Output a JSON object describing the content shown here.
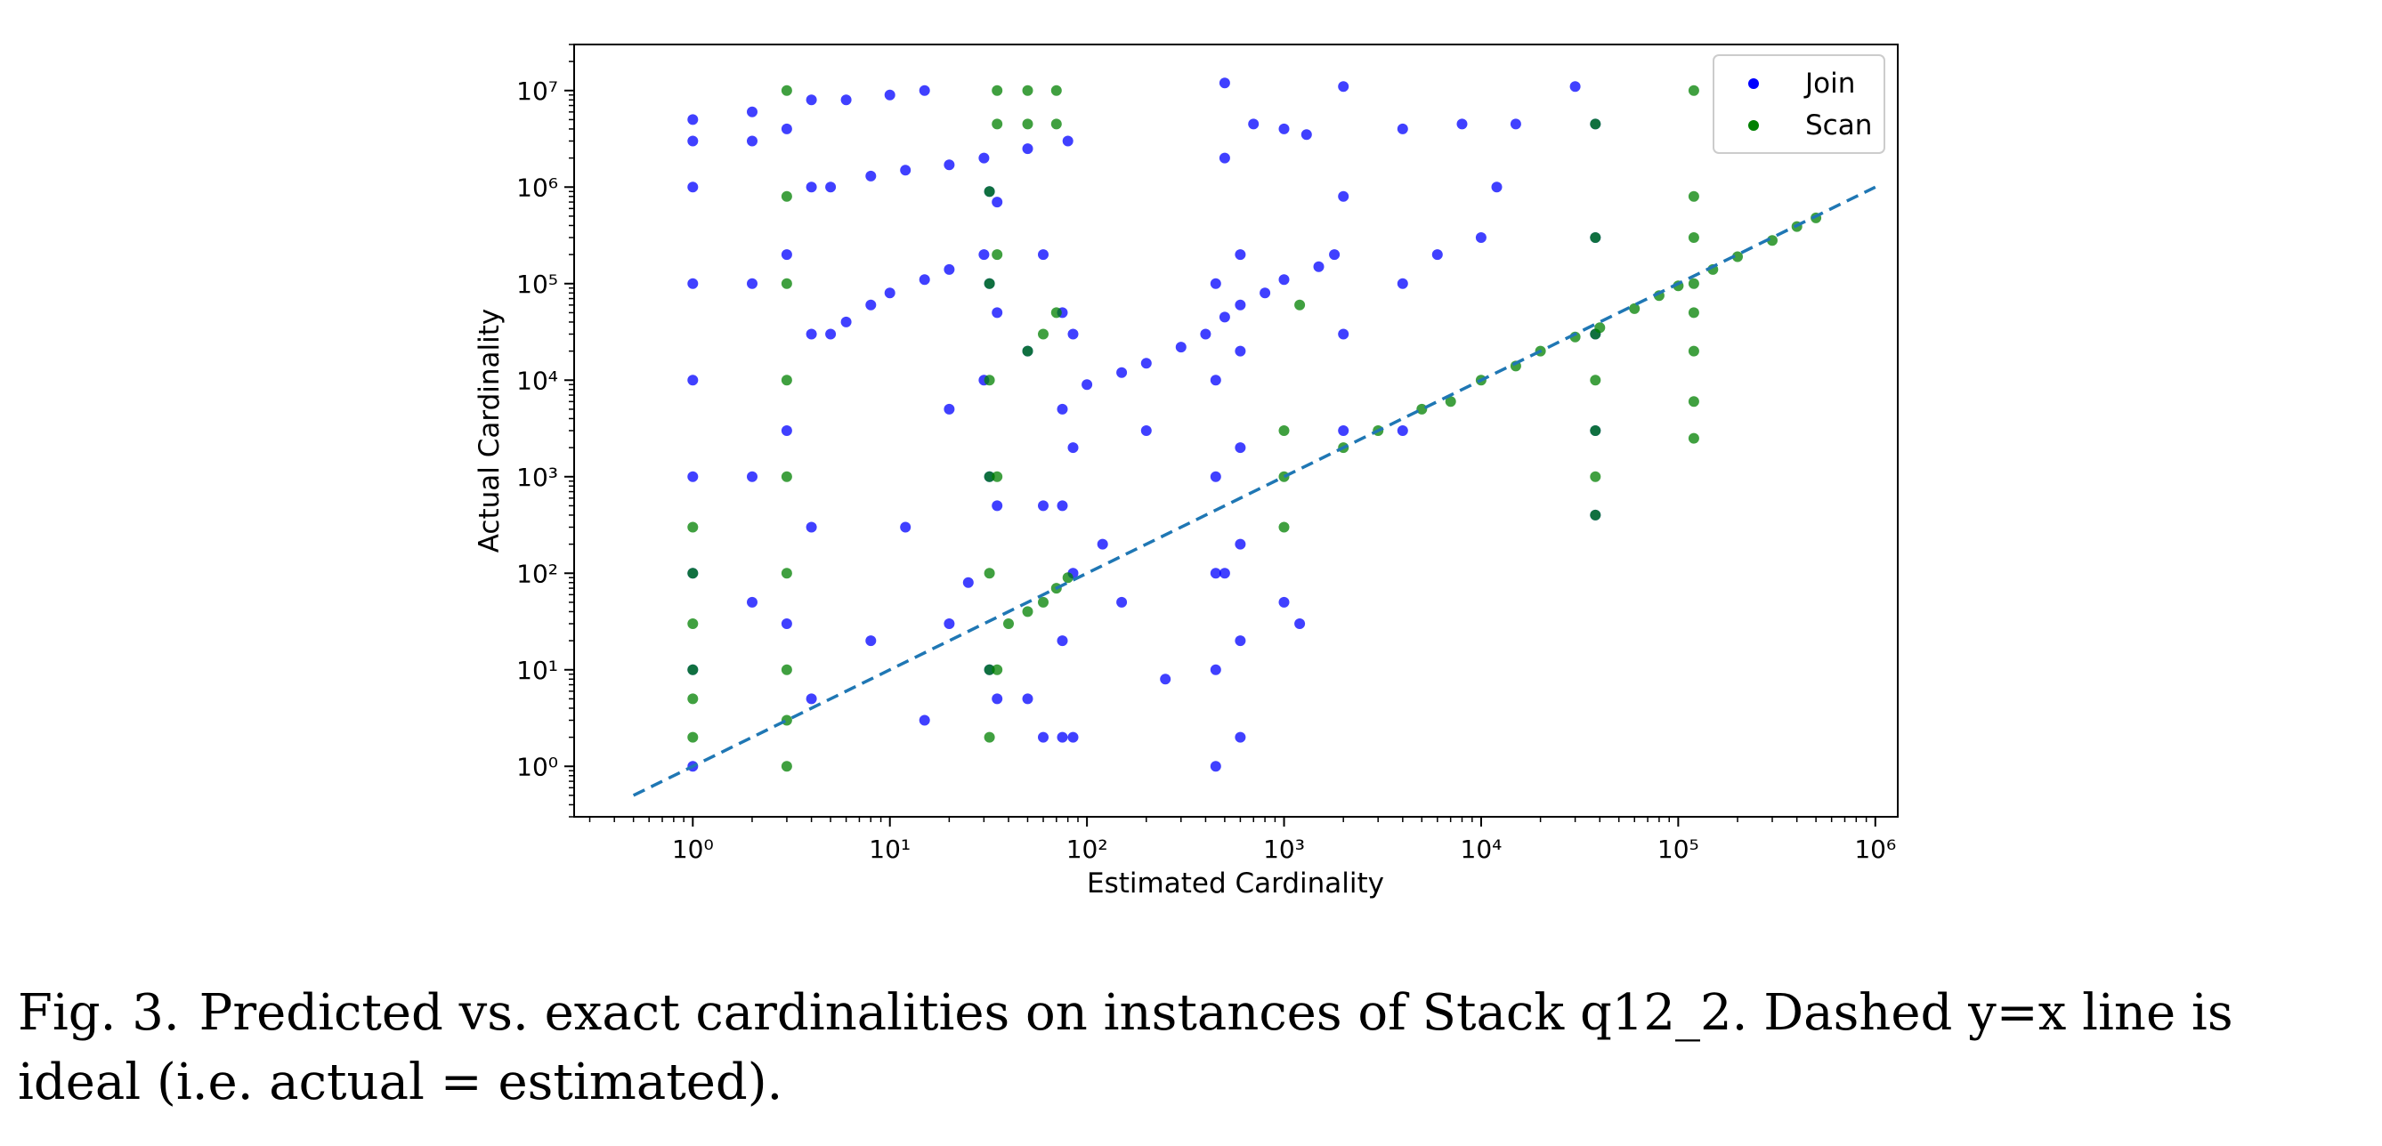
{
  "chart_data": {
    "type": "scatter",
    "title": "",
    "xlabel": "Estimated Cardinality",
    "ylabel": "Actual Cardinality",
    "xscale": "log",
    "yscale": "log",
    "xlim": [
      0.25,
      1300000
    ],
    "ylim": [
      0.3,
      30000000
    ],
    "xtick_labels": [
      "10^0",
      "10^1",
      "10^2",
      "10^3",
      "10^4",
      "10^5",
      "10^6"
    ],
    "ytick_labels": [
      "10^0",
      "10^1",
      "10^2",
      "10^3",
      "10^4",
      "10^5",
      "10^6",
      "10^7"
    ],
    "legend": {
      "position": "top-right",
      "entries": [
        "Join",
        "Scan"
      ]
    },
    "grid": false,
    "reference_line": {
      "style": "dashed",
      "color": "#1f77b4",
      "x": [
        0.5,
        1000000
      ],
      "y": [
        0.5,
        1000000
      ]
    },
    "series": [
      {
        "name": "Join",
        "color": "#0000ff",
        "points": [
          [
            1,
            1
          ],
          [
            1,
            10
          ],
          [
            1,
            100
          ],
          [
            1,
            1000
          ],
          [
            1,
            10000
          ],
          [
            1,
            100000
          ],
          [
            1,
            1000000
          ],
          [
            1,
            3000000
          ],
          [
            1,
            5000000
          ],
          [
            2,
            50
          ],
          [
            2,
            1000
          ],
          [
            2,
            100000
          ],
          [
            2,
            3000000
          ],
          [
            2,
            6000000
          ],
          [
            3,
            30
          ],
          [
            3,
            3000
          ],
          [
            3,
            200000
          ],
          [
            3,
            4000000
          ],
          [
            4,
            5
          ],
          [
            4,
            300
          ],
          [
            4,
            30000
          ],
          [
            4,
            1000000
          ],
          [
            4,
            8000000
          ],
          [
            5,
            30000
          ],
          [
            6,
            40000
          ],
          [
            8,
            60000
          ],
          [
            10,
            80000
          ],
          [
            15,
            110000
          ],
          [
            20,
            140000
          ],
          [
            30,
            200000
          ],
          [
            5,
            1000000
          ],
          [
            8,
            1300000
          ],
          [
            12,
            1500000
          ],
          [
            20,
            1700000
          ],
          [
            30,
            2000000
          ],
          [
            50,
            2500000
          ],
          [
            80,
            3000000
          ],
          [
            6,
            8000000
          ],
          [
            10,
            9000000
          ],
          [
            15,
            10000000
          ],
          [
            8,
            20
          ],
          [
            12,
            300
          ],
          [
            15,
            3
          ],
          [
            20,
            5000
          ],
          [
            25,
            80
          ],
          [
            30,
            10000
          ],
          [
            32,
            10
          ],
          [
            32,
            1000
          ],
          [
            32,
            100000
          ],
          [
            32,
            900000
          ],
          [
            35,
            5
          ],
          [
            35,
            500
          ],
          [
            35,
            50000
          ],
          [
            35,
            700000
          ],
          [
            50,
            20000
          ],
          [
            60,
            2
          ],
          [
            60,
            500
          ],
          [
            60,
            200000
          ],
          [
            75,
            2
          ],
          [
            75,
            20
          ],
          [
            75,
            500
          ],
          [
            75,
            5000
          ],
          [
            75,
            50000
          ],
          [
            85,
            2
          ],
          [
            85,
            100
          ],
          [
            85,
            2000
          ],
          [
            85,
            30000
          ],
          [
            100,
            9000
          ],
          [
            150,
            12000
          ],
          [
            200,
            15000
          ],
          [
            300,
            22000
          ],
          [
            400,
            30000
          ],
          [
            500,
            45000
          ],
          [
            600,
            60000
          ],
          [
            800,
            80000
          ],
          [
            1000,
            110000
          ],
          [
            1500,
            150000
          ],
          [
            1800,
            200000
          ],
          [
            450,
            1
          ],
          [
            450,
            10
          ],
          [
            450,
            100
          ],
          [
            450,
            1000
          ],
          [
            450,
            10000
          ],
          [
            450,
            100000
          ],
          [
            500,
            12000000
          ],
          [
            500,
            2000000
          ],
          [
            600,
            2
          ],
          [
            600,
            20
          ],
          [
            600,
            200
          ],
          [
            600,
            2000
          ],
          [
            600,
            20000
          ],
          [
            600,
            200000
          ],
          [
            700,
            4500000
          ],
          [
            1000,
            4000000
          ],
          [
            1300,
            3500000
          ],
          [
            2000,
            11000000
          ],
          [
            2000,
            800000
          ],
          [
            2000,
            30000
          ],
          [
            2000,
            3000
          ],
          [
            4000,
            4000000
          ],
          [
            4000,
            100000
          ],
          [
            4000,
            3000
          ],
          [
            6000,
            200000
          ],
          [
            8000,
            4500000
          ],
          [
            10000,
            300000
          ],
          [
            12000,
            1000000
          ],
          [
            15000,
            4500000
          ],
          [
            30000,
            11000000
          ],
          [
            38000,
            4500000
          ],
          [
            38000,
            300000
          ],
          [
            38000,
            30000
          ],
          [
            38000,
            3000
          ],
          [
            38000,
            400
          ],
          [
            500,
            100
          ],
          [
            1000,
            50
          ],
          [
            1200,
            30
          ],
          [
            250,
            8
          ],
          [
            150,
            50
          ],
          [
            120,
            200
          ],
          [
            200,
            3000
          ],
          [
            20,
            30
          ],
          [
            50,
            5
          ]
        ]
      },
      {
        "name": "Scan",
        "color": "#008000",
        "points": [
          [
            1,
            2
          ],
          [
            1,
            5
          ],
          [
            1,
            10
          ],
          [
            1,
            30
          ],
          [
            1,
            100
          ],
          [
            1,
            300
          ],
          [
            3,
            1
          ],
          [
            3,
            3
          ],
          [
            3,
            10
          ],
          [
            3,
            100
          ],
          [
            3,
            1000
          ],
          [
            3,
            10000
          ],
          [
            3,
            100000
          ],
          [
            3,
            800000
          ],
          [
            3,
            10000000
          ],
          [
            32,
            2
          ],
          [
            32,
            10
          ],
          [
            32,
            100
          ],
          [
            32,
            1000
          ],
          [
            32,
            10000
          ],
          [
            32,
            100000
          ],
          [
            32,
            900000
          ],
          [
            35,
            10
          ],
          [
            35,
            1000
          ],
          [
            35,
            200000
          ],
          [
            35,
            4500000
          ],
          [
            35,
            10000000
          ],
          [
            40,
            30
          ],
          [
            50,
            40
          ],
          [
            60,
            50
          ],
          [
            70,
            70
          ],
          [
            80,
            90
          ],
          [
            50,
            4500000
          ],
          [
            70,
            4500000
          ],
          [
            50,
            10000000
          ],
          [
            70,
            10000000
          ],
          [
            50,
            20000
          ],
          [
            60,
            30000
          ],
          [
            70,
            50000
          ],
          [
            1000,
            300
          ],
          [
            1000,
            1000
          ],
          [
            1000,
            3000
          ],
          [
            1200,
            60000
          ],
          [
            2000,
            2000
          ],
          [
            3000,
            3000
          ],
          [
            5000,
            5000
          ],
          [
            7000,
            6000
          ],
          [
            10000,
            10000
          ],
          [
            15000,
            14000
          ],
          [
            20000,
            20000
          ],
          [
            30000,
            28000
          ],
          [
            40000,
            35000
          ],
          [
            60000,
            55000
          ],
          [
            80000,
            75000
          ],
          [
            100000,
            95000
          ],
          [
            150000,
            140000
          ],
          [
            200000,
            190000
          ],
          [
            300000,
            280000
          ],
          [
            400000,
            390000
          ],
          [
            500000,
            480000
          ],
          [
            38000,
            400
          ],
          [
            38000,
            1000
          ],
          [
            38000,
            3000
          ],
          [
            38000,
            10000
          ],
          [
            38000,
            30000
          ],
          [
            38000,
            300000
          ],
          [
            38000,
            4500000
          ],
          [
            120000,
            2500
          ],
          [
            120000,
            6000
          ],
          [
            120000,
            20000
          ],
          [
            120000,
            50000
          ],
          [
            120000,
            100000
          ],
          [
            120000,
            300000
          ],
          [
            120000,
            800000
          ],
          [
            120000,
            10000000
          ]
        ]
      }
    ]
  },
  "caption": {
    "label": "Fig. 3.",
    "text": "Predicted vs. exact cardinalities on instances of Stack q12_2. Dashed y=x line is ideal (i.e. actual = estimated)."
  }
}
